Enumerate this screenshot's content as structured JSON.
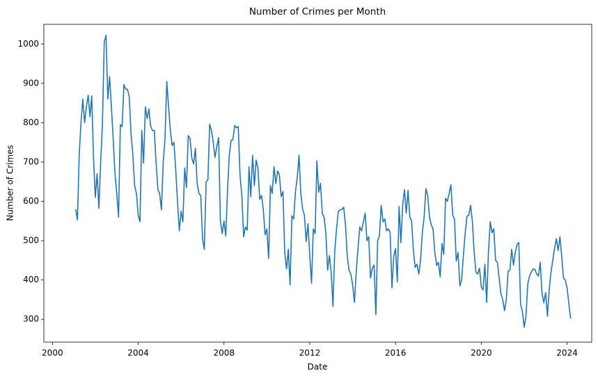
{
  "chart_data": {
    "type": "line",
    "title": "Number of Crimes per Month",
    "x_label": "Date",
    "y_label": "Number of Crimes",
    "color": "#1f77b4",
    "x": [
      2001.083,
      2001.167,
      2001.25,
      2001.333,
      2001.417,
      2001.5,
      2001.583,
      2001.667,
      2001.75,
      2001.833,
      2001.917,
      2002.0,
      2002.083,
      2002.167,
      2002.25,
      2002.333,
      2002.417,
      2002.5,
      2002.583,
      2002.667,
      2002.75,
      2002.833,
      2002.917,
      2003.0,
      2003.083,
      2003.167,
      2003.25,
      2003.333,
      2003.417,
      2003.5,
      2003.583,
      2003.667,
      2003.75,
      2003.833,
      2003.917,
      2004.0,
      2004.083,
      2004.167,
      2004.25,
      2004.333,
      2004.417,
      2004.5,
      2004.583,
      2004.667,
      2004.75,
      2004.833,
      2004.917,
      2005.0,
      2005.083,
      2005.167,
      2005.25,
      2005.333,
      2005.417,
      2005.5,
      2005.583,
      2005.667,
      2005.75,
      2005.833,
      2005.917,
      2006.0,
      2006.083,
      2006.167,
      2006.25,
      2006.333,
      2006.417,
      2006.5,
      2006.583,
      2006.667,
      2006.75,
      2006.833,
      2006.917,
      2007.0,
      2007.083,
      2007.167,
      2007.25,
      2007.333,
      2007.417,
      2007.5,
      2007.583,
      2007.667,
      2007.75,
      2007.833,
      2007.917,
      2008.0,
      2008.083,
      2008.167,
      2008.25,
      2008.333,
      2008.417,
      2008.5,
      2008.583,
      2008.667,
      2008.75,
      2008.833,
      2008.917,
      2009.0,
      2009.083,
      2009.167,
      2009.25,
      2009.333,
      2009.417,
      2009.5,
      2009.583,
      2009.667,
      2009.75,
      2009.833,
      2009.917,
      2010.0,
      2010.083,
      2010.167,
      2010.25,
      2010.333,
      2010.417,
      2010.5,
      2010.583,
      2010.667,
      2010.75,
      2010.833,
      2010.917,
      2011.0,
      2011.083,
      2011.167,
      2011.25,
      2011.333,
      2011.417,
      2011.5,
      2011.583,
      2011.667,
      2011.75,
      2011.833,
      2011.917,
      2012.0,
      2012.083,
      2012.167,
      2012.25,
      2012.333,
      2012.417,
      2012.5,
      2012.583,
      2012.667,
      2012.75,
      2012.833,
      2012.917,
      2013.0,
      2013.083,
      2013.167,
      2013.25,
      2013.333,
      2013.417,
      2013.5,
      2013.583,
      2013.667,
      2013.75,
      2013.833,
      2013.917,
      2014.0,
      2014.083,
      2014.167,
      2014.25,
      2014.333,
      2014.417,
      2014.5,
      2014.583,
      2014.667,
      2014.75,
      2014.833,
      2014.917,
      2015.0,
      2015.083,
      2015.167,
      2015.25,
      2015.333,
      2015.417,
      2015.5,
      2015.583,
      2015.667,
      2015.75,
      2015.833,
      2015.917,
      2016.0,
      2016.083,
      2016.167,
      2016.25,
      2016.333,
      2016.417,
      2016.5,
      2016.583,
      2016.667,
      2016.75,
      2016.833,
      2016.917,
      2017.0,
      2017.083,
      2017.167,
      2017.25,
      2017.333,
      2017.417,
      2017.5,
      2017.583,
      2017.667,
      2017.75,
      2017.833,
      2017.917,
      2018.0,
      2018.083,
      2018.167,
      2018.25,
      2018.333,
      2018.417,
      2018.5,
      2018.583,
      2018.667,
      2018.75,
      2018.833,
      2018.917,
      2019.0,
      2019.083,
      2019.167,
      2019.25,
      2019.333,
      2019.417,
      2019.5,
      2019.583,
      2019.667,
      2019.75,
      2019.833,
      2019.917,
      2020.0,
      2020.083,
      2020.167,
      2020.25,
      2020.333,
      2020.417,
      2020.5,
      2020.583,
      2020.667,
      2020.75,
      2020.833,
      2020.917,
      2021.0,
      2021.083,
      2021.167,
      2021.25,
      2021.333,
      2021.417,
      2021.5,
      2021.583,
      2021.667,
      2021.75,
      2021.833,
      2021.917,
      2022.0,
      2022.083,
      2022.167,
      2022.25,
      2022.333,
      2022.417,
      2022.5,
      2022.583,
      2022.667,
      2022.75,
      2022.833,
      2022.917,
      2023.0,
      2023.083,
      2023.167,
      2023.25,
      2023.333,
      2023.417,
      2023.5,
      2023.583,
      2023.667,
      2023.75,
      2023.833,
      2023.917,
      2024.0,
      2024.083,
      2024.167
    ],
    "values": [
      580,
      553,
      720,
      800,
      860,
      800,
      840,
      870,
      815,
      868,
      710,
      610,
      670,
      582,
      700,
      800,
      1005,
      1022,
      860,
      917,
      840,
      760,
      670,
      620,
      560,
      795,
      790,
      897,
      885,
      885,
      865,
      770,
      720,
      640,
      620,
      565,
      548,
      780,
      697,
      840,
      810,
      835,
      790,
      780,
      780,
      700,
      630,
      620,
      578,
      700,
      760,
      905,
      840,
      780,
      742,
      750,
      680,
      600,
      525,
      575,
      548,
      685,
      635,
      767,
      760,
      710,
      695,
      735,
      645,
      620,
      615,
      505,
      478,
      650,
      655,
      796,
      780,
      750,
      712,
      740,
      762,
      550,
      518,
      550,
      512,
      630,
      720,
      755,
      757,
      793,
      787,
      790,
      665,
      615,
      510,
      535,
      527,
      688,
      612,
      717,
      640,
      705,
      685,
      605,
      615,
      580,
      515,
      530,
      455,
      640,
      620,
      688,
      645,
      677,
      668,
      612,
      625,
      470,
      428,
      478,
      388,
      563,
      555,
      625,
      660,
      717,
      620,
      580,
      565,
      498,
      543,
      463,
      392,
      530,
      518,
      703,
      623,
      646,
      570,
      560,
      520,
      425,
      462,
      420,
      333,
      475,
      530,
      575,
      578,
      580,
      585,
      540,
      460,
      425,
      415,
      388,
      343,
      420,
      480,
      535,
      525,
      548,
      570,
      500,
      510,
      405,
      430,
      438,
      312,
      500,
      513,
      590,
      548,
      555,
      525,
      530,
      520,
      380,
      460,
      480,
      395,
      587,
      495,
      590,
      630,
      570,
      628,
      560,
      550,
      475,
      432,
      440,
      415,
      450,
      520,
      560,
      632,
      615,
      560,
      540,
      530,
      470,
      437,
      445,
      408,
      493,
      465,
      608,
      600,
      620,
      642,
      565,
      555,
      448,
      470,
      385,
      400,
      465,
      520,
      562,
      565,
      590,
      550,
      470,
      420,
      415,
      430,
      382,
      375,
      440,
      343,
      470,
      548,
      520,
      530,
      450,
      445,
      405,
      365,
      350,
      322,
      350,
      422,
      425,
      478,
      438,
      470,
      490,
      495,
      338,
      320,
      280,
      308,
      390,
      410,
      420,
      428,
      427,
      415,
      410,
      445,
      365,
      342,
      368,
      308,
      375,
      420,
      450,
      480,
      505,
      475,
      510,
      460,
      405,
      400,
      380,
      340,
      302
    ],
    "xlim": [
      1999.6,
      2025.15
    ],
    "ylim": [
      242,
      1050
    ],
    "xticks": [
      2000,
      2004,
      2008,
      2012,
      2016,
      2020,
      2024
    ],
    "yticks": [
      300,
      400,
      500,
      600,
      700,
      800,
      900,
      1000
    ]
  }
}
